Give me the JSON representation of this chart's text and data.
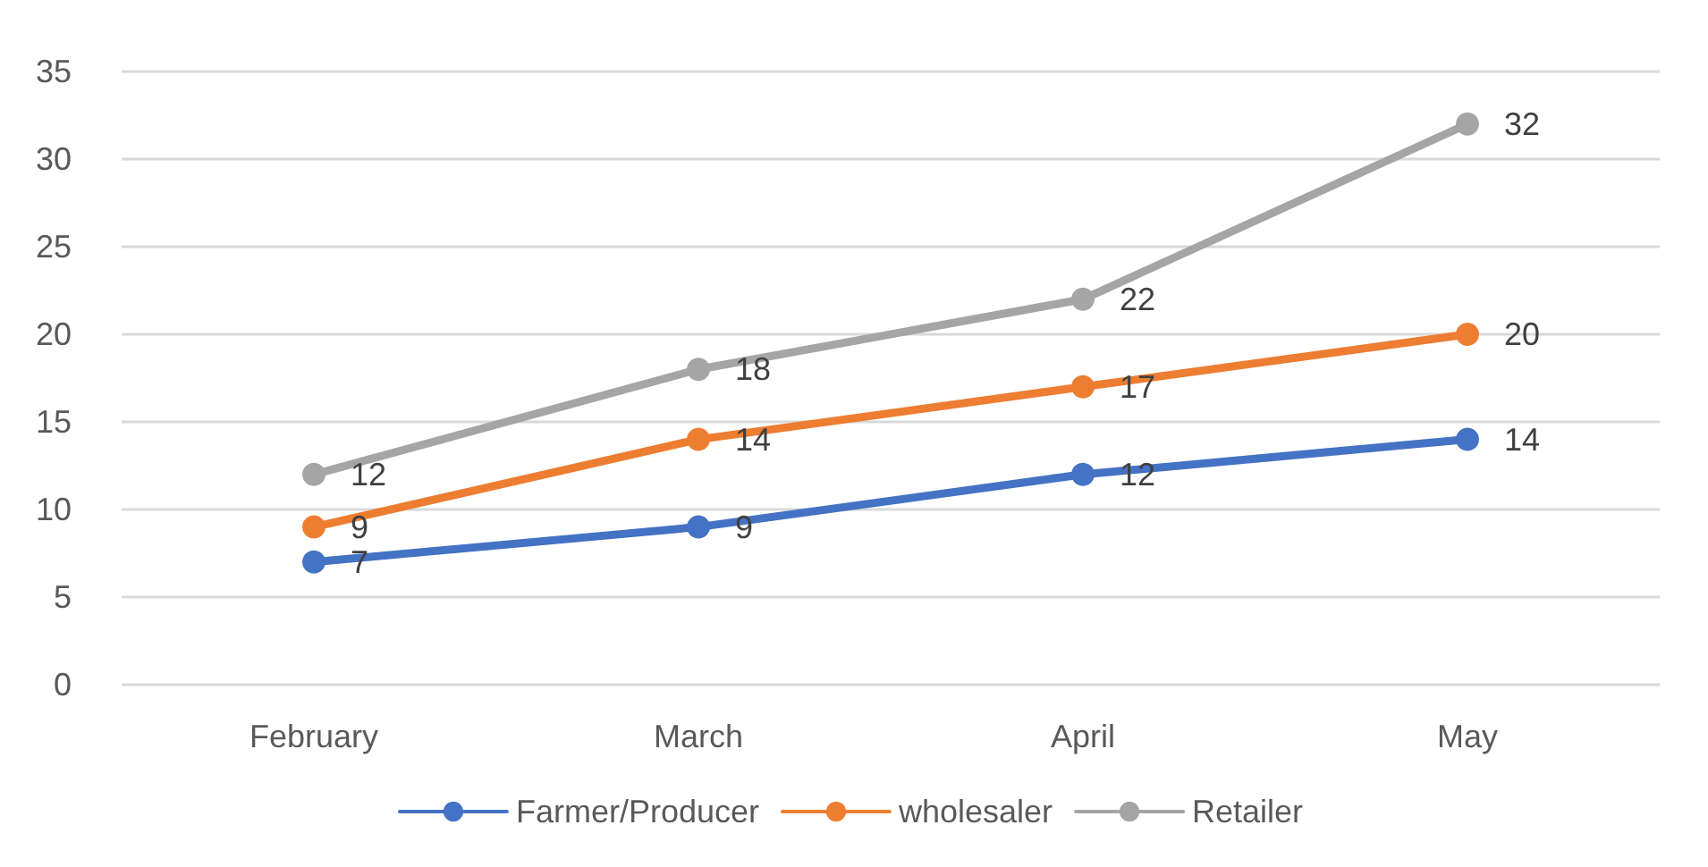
{
  "chart_data": {
    "type": "line",
    "categories": [
      "February",
      "March",
      "April",
      "May"
    ],
    "series": [
      {
        "name": "Farmer/Producer",
        "color": "#4472c4",
        "values": [
          7,
          9,
          12,
          14
        ]
      },
      {
        "name": "wholesaler",
        "color": "#ed7d31",
        "values": [
          9,
          14,
          17,
          20
        ]
      },
      {
        "name": "Retailer",
        "color": "#a5a5a5",
        "values": [
          12,
          18,
          22,
          32
        ]
      }
    ],
    "ylim": [
      0,
      35
    ],
    "yticks": [
      0,
      5,
      10,
      15,
      20,
      25,
      30,
      35
    ],
    "grid": "y",
    "legend": "bottom",
    "marker": "circle",
    "line_style": "solid",
    "data_labels": true
  }
}
